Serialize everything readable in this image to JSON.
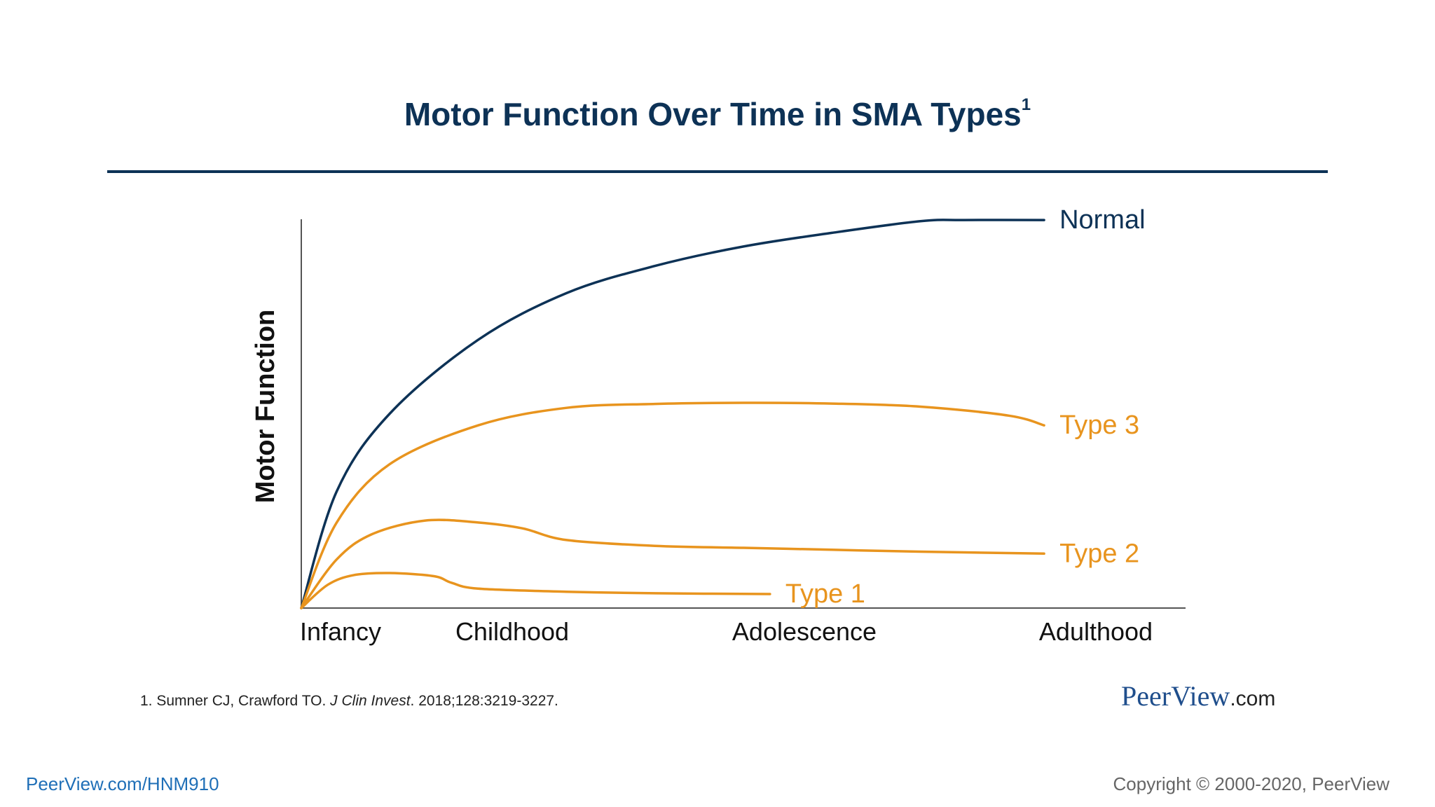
{
  "slide": {
    "title": "Motor Function Over Time in SMA Types",
    "title_superscript": "1",
    "reference": {
      "prefix": "1. Sumner CJ, Crawford TO. ",
      "journal": "J Clin Invest",
      "suffix": ". 2018;128:3219-3227."
    },
    "logo": {
      "brand": "PeerView",
      "suffix": ".com"
    },
    "footer_link": "PeerView.com/HNM910",
    "copyright": "Copyright © 2000-2020, PeerView"
  },
  "chart_data": {
    "type": "line",
    "ylabel": "Motor Function",
    "xlabel": "",
    "categories": [
      "Infancy",
      "Childhood",
      "Adolescence",
      "Adulthood"
    ],
    "xlim": [
      0,
      100
    ],
    "ylim": [
      0,
      100
    ],
    "grid": false,
    "colors": {
      "normal": "#0d3256",
      "sma": "#e8941e"
    },
    "series": [
      {
        "name": "Normal",
        "color": "#0d3256",
        "x": [
          0,
          4,
          10,
          20,
          30,
          40,
          50,
          60,
          70,
          75,
          84
        ],
        "y": [
          0,
          30,
          50,
          69,
          81,
          88,
          93,
          96.5,
          99.5,
          99.8,
          99.8
        ]
      },
      {
        "name": "Type 3",
        "color": "#e8941e",
        "x": [
          0,
          4,
          10,
          20,
          30,
          40,
          50,
          60,
          70,
          80,
          84
        ],
        "y": [
          0,
          22,
          37,
          47,
          51.5,
          52.5,
          52.8,
          52.6,
          51.8,
          49.5,
          47
        ]
      },
      {
        "name": "Type 2",
        "color": "#e8941e",
        "x": [
          0,
          4,
          8,
          14,
          20,
          25,
          30,
          40,
          50,
          60,
          70,
          84
        ],
        "y": [
          0,
          12.5,
          19,
          22.5,
          22,
          20.5,
          17.5,
          16,
          15.5,
          15,
          14.5,
          14
        ]
      },
      {
        "name": "Type 1",
        "color": "#e8941e",
        "x": [
          0,
          3,
          6,
          10,
          15,
          17,
          20,
          30,
          40,
          53
        ],
        "y": [
          0,
          6,
          8.5,
          9,
          8.2,
          6.5,
          5,
          4.2,
          3.8,
          3.6
        ]
      }
    ]
  }
}
